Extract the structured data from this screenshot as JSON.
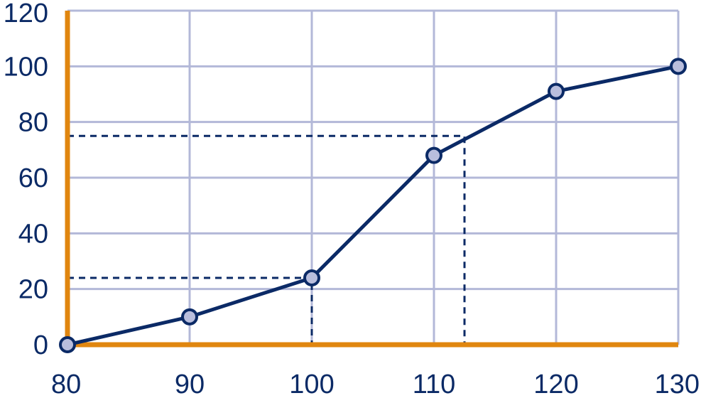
{
  "chart_data": {
    "type": "line",
    "title": "",
    "xlabel": "",
    "ylabel": "",
    "xlim": [
      80,
      130
    ],
    "ylim": [
      0,
      120
    ],
    "x_ticks": [
      "80",
      "90",
      "100",
      "110",
      "120",
      "130"
    ],
    "y_ticks": [
      "0",
      "20",
      "40",
      "60",
      "80",
      "100",
      "120"
    ],
    "grid": true,
    "series": [
      {
        "x": [
          80,
          90,
          100,
          110,
          120,
          130
        ],
        "y": [
          0,
          10,
          24,
          68,
          91,
          100
        ]
      }
    ],
    "guides": [
      {
        "x": 100,
        "y": 24
      },
      {
        "x": 112.5,
        "y": 75
      }
    ],
    "colors": {
      "axis": "#e0860f",
      "line": "#0b2a66",
      "marker_fill": "#b9bedd",
      "grid": "#b3b8d8"
    }
  }
}
